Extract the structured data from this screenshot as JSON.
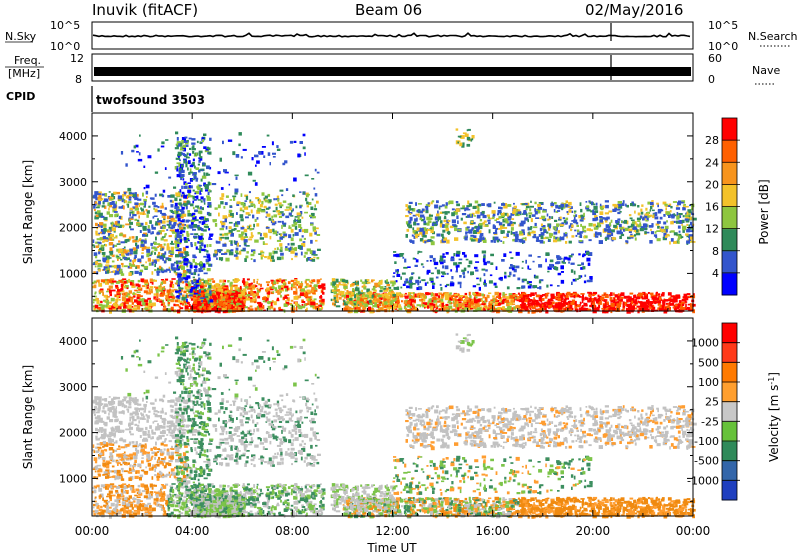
{
  "header": {
    "station": "Inuvik (fitACF)",
    "beam": "Beam 06",
    "date": "02/May/2016"
  },
  "sky_panel": {
    "left_label": "N.Sky",
    "left_ticks": [
      "10^5",
      "10^0"
    ],
    "right_label": "N.Search",
    "right_ticks": [
      "10^5",
      "10^0"
    ]
  },
  "freq_panel": {
    "left_label_1": "Freq.",
    "left_label_2": "[MHz]",
    "left_ticks": [
      "12",
      "8"
    ],
    "right_label": "Nave",
    "right_ticks": [
      "60",
      "0"
    ]
  },
  "cpid": {
    "label": "CPID",
    "value": "twofsound 3503"
  },
  "chart_data": [
    {
      "type": "heatmap",
      "title": "",
      "quantity": "Power",
      "ylabel": "Slant Range [km]",
      "xlabel": "",
      "ylim": [
        180,
        4500
      ],
      "yticks": [
        "1000",
        "2000",
        "3000",
        "4000"
      ],
      "colorbar_label": "Power [dB]",
      "colorbar_ticks": [
        "4",
        "8",
        "12",
        "16",
        "20",
        "24",
        "28"
      ],
      "colorbar_colors": [
        "#0000ff",
        "#3355cc",
        "#2f8a5a",
        "#8ec63f",
        "#f3c22a",
        "#f7941d",
        "#ff6000",
        "#ff0000"
      ]
    },
    {
      "type": "heatmap",
      "title": "",
      "quantity": "Velocity",
      "ylabel": "Slant Range [km]",
      "xlabel": "Time UT",
      "ylim": [
        180,
        4500
      ],
      "yticks": [
        "1000",
        "2000",
        "3000",
        "4000"
      ],
      "xticks": [
        "00:00",
        "04:00",
        "08:00",
        "12:00",
        "16:00",
        "20:00",
        "00:00"
      ],
      "colorbar_label": "Velocity [m s",
      "colorbar_label_sup": "-1",
      "colorbar_label_end": "]",
      "colorbar_ticks": [
        "1000",
        "500",
        "100",
        "25",
        "-25",
        "-100",
        "-500",
        "-1000"
      ],
      "colorbar_colors": [
        "#1f3fbf",
        "#3366aa",
        "#2f8a5a",
        "#66c23a",
        "#c8c8c8",
        "#ff9f2f",
        "#ff7a00",
        "#ff3a1a",
        "#ff0000"
      ]
    }
  ],
  "colors": {
    "axis": "#000000",
    "gray": "#c0c0c0"
  }
}
